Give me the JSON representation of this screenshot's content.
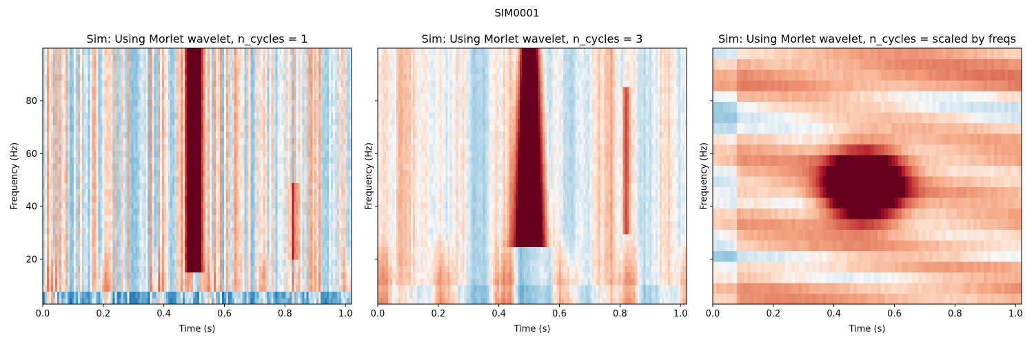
{
  "figure": {
    "suptitle": "SIM0001"
  },
  "chart_data": [
    {
      "type": "heatmap",
      "title": "Sim: Using Morlet wavelet, n_cycles = 1",
      "xlabel": "Time (s)",
      "ylabel": "Frequency (Hz)",
      "xlim": [
        0.0,
        1.02
      ],
      "ylim": [
        3,
        100
      ],
      "xticks": [
        "0.0",
        "0.2",
        "0.4",
        "0.6",
        "0.8",
        "1.0"
      ],
      "yticks": [
        "20",
        "40",
        "60",
        "80"
      ],
      "ytick_labels_visible": true,
      "colormap": "RdBu_r",
      "colors": {
        "high": "#67001f",
        "mid": "#f7f7f7",
        "low": "#92c5de"
      },
      "features": [
        {
          "kind": "burst",
          "time": 0.5,
          "freq_range": [
            15,
            100
          ],
          "strength": "max"
        },
        {
          "kind": "streak",
          "time": 0.83,
          "freq_range": [
            20,
            50
          ],
          "strength": "medium"
        },
        {
          "kind": "low_freq_noise",
          "freq_range": [
            3,
            25
          ],
          "strength": "medium"
        }
      ]
    },
    {
      "type": "heatmap",
      "title": "Sim: Using Morlet wavelet, n_cycles = 3",
      "xlabel": "Time (s)",
      "ylabel": "Frequency (Hz)",
      "xlim": [
        0.0,
        1.02
      ],
      "ylim": [
        3,
        100
      ],
      "xticks": [
        "0.0",
        "0.2",
        "0.4",
        "0.6",
        "0.8",
        "1.0"
      ],
      "yticks": [
        "20",
        "40",
        "60",
        "80"
      ],
      "ytick_labels_visible": false,
      "colormap": "RdBu_r",
      "colors": {
        "high": "#67001f",
        "mid": "#f7f7f7",
        "low": "#92c5de"
      },
      "features": [
        {
          "kind": "burst",
          "time": 0.5,
          "freq_range": [
            26,
            100
          ],
          "strength": "max"
        },
        {
          "kind": "streak",
          "time": 0.82,
          "freq_range": [
            30,
            85
          ],
          "strength": "medium"
        },
        {
          "kind": "low_freq_noise",
          "freq_range": [
            3,
            30
          ],
          "strength": "medium"
        }
      ]
    },
    {
      "type": "heatmap",
      "title": "Sim: Using Morlet wavelet, n_cycles = scaled by freqs",
      "xlabel": "Time (s)",
      "ylabel": "Frequency (Hz)",
      "xlim": [
        0.0,
        1.02
      ],
      "ylim": [
        3,
        100
      ],
      "xticks": [
        "0.0",
        "0.2",
        "0.4",
        "0.6",
        "0.8",
        "1.0"
      ],
      "yticks": [
        "20",
        "40",
        "60",
        "80"
      ],
      "ytick_labels_visible": false,
      "colormap": "RdBu_r",
      "colors": {
        "high": "#67001f",
        "mid": "#f7f7f7",
        "low": "#92c5de"
      },
      "features": [
        {
          "kind": "blob",
          "time": 0.5,
          "freq_range": [
            36,
            60
          ],
          "strength": "max"
        },
        {
          "kind": "horizontal_bands",
          "freq_range": [
            3,
            100
          ],
          "strength": "medium"
        }
      ]
    }
  ]
}
